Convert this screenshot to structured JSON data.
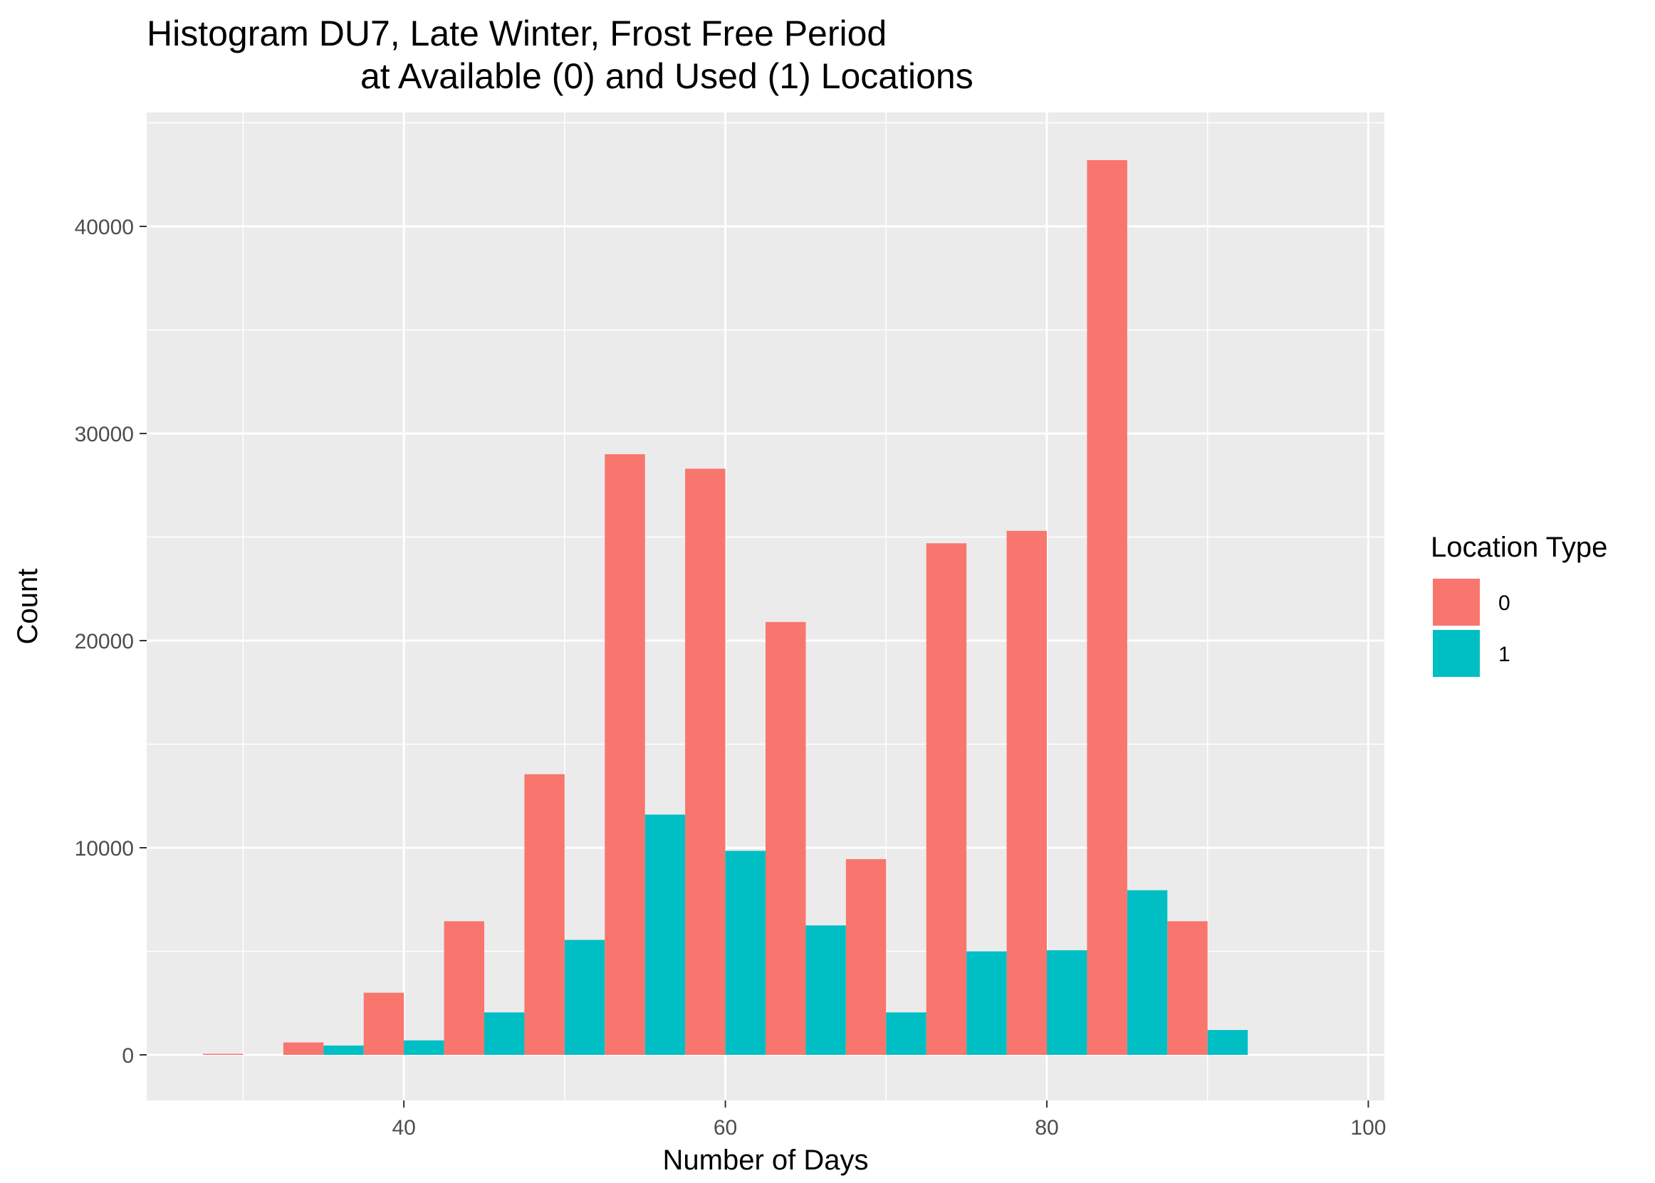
{
  "chart_data": {
    "type": "bar",
    "title_line1": "Histogram DU7, Late Winter, Frost Free Period",
    "title_line2": "at Available (0) and Used (1) Locations",
    "xlabel": "Number of Days",
    "ylabel": "Count",
    "xlim": [
      24,
      101
    ],
    "ylim": [
      -2200,
      45500
    ],
    "x_ticks": [
      40,
      60,
      80,
      100
    ],
    "y_ticks": [
      0,
      10000,
      20000,
      30000,
      40000
    ],
    "grid": true,
    "bin_width": 5,
    "bin_centers": [
      30,
      35,
      40,
      45,
      50,
      55,
      60,
      65,
      70,
      75,
      80,
      85,
      90,
      95
    ],
    "series": [
      {
        "name": "0",
        "color": "#F8766D",
        "values": [
          50,
          600,
          3000,
          6450,
          13550,
          29000,
          28300,
          20900,
          9450,
          24700,
          25300,
          43200,
          6450,
          0
        ]
      },
      {
        "name": "1",
        "color": "#00BFC4",
        "values": [
          0,
          450,
          700,
          2050,
          5550,
          11600,
          9850,
          6250,
          2050,
          5000,
          5050,
          7950,
          1200,
          0
        ]
      }
    ],
    "legend": {
      "title": "Location Type",
      "position": "right"
    },
    "panel_color": "#EBEBEB",
    "grid_color": "#FFFFFF"
  }
}
